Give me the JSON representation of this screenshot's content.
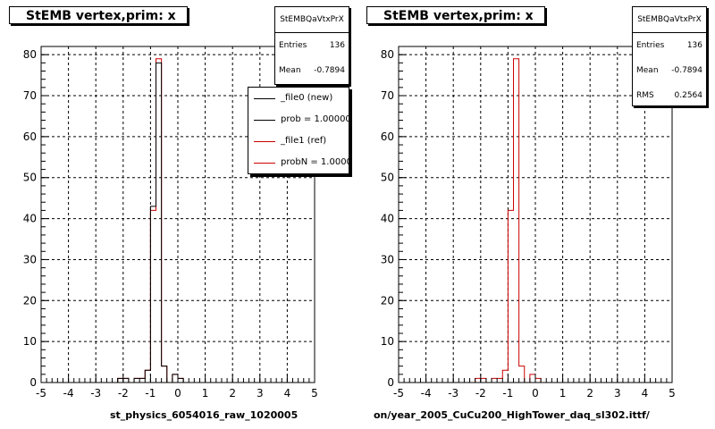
{
  "chart_data": [
    {
      "type": "bar",
      "title": "StEMB  vertex,prim: x",
      "stats": {
        "name": "StEMBQaVtxPrX",
        "entries_label": "Entries",
        "entries": "136",
        "mean_label": "Mean",
        "mean": "-0.7894"
      },
      "legend": [
        {
          "label": "_file0 (new)",
          "color": "#000000"
        },
        {
          "label": "prob = 1.000000",
          "color": "#000000"
        },
        {
          "label": "_file1 (ref)",
          "color": "#cc0000"
        },
        {
          "label": "probN = 1.000000",
          "color": "#cc0000"
        }
      ],
      "xlabel": "st_physics_6054016_raw_1020005",
      "xlim": [
        -5,
        5
      ],
      "ylim": [
        0,
        82
      ],
      "xticks": [
        -5,
        -4,
        -3,
        -2,
        -1,
        0,
        1,
        2,
        3,
        4,
        5
      ],
      "yticks": [
        0,
        10,
        20,
        30,
        40,
        50,
        60,
        70,
        80
      ],
      "bin_width": 0.2,
      "bin_start": -5,
      "series": [
        {
          "color": "#cc0000",
          "values": [
            0,
            0,
            0,
            0,
            0,
            0,
            0,
            0,
            0,
            0,
            0,
            0,
            0,
            0,
            1,
            1,
            0,
            1,
            1,
            3,
            42,
            79,
            4,
            0,
            2,
            1,
            0,
            0,
            0,
            0,
            0,
            0,
            0,
            0,
            0,
            0,
            0,
            0,
            0,
            0,
            0,
            0,
            0,
            0,
            0,
            0,
            0,
            0,
            0,
            0
          ]
        },
        {
          "color": "#000000",
          "values": [
            0,
            0,
            0,
            0,
            0,
            0,
            0,
            0,
            0,
            0,
            0,
            0,
            0,
            0,
            1,
            1,
            0,
            1,
            1,
            3,
            43,
            78,
            4,
            0,
            2,
            1,
            0,
            0,
            0,
            0,
            0,
            0,
            0,
            0,
            0,
            0,
            0,
            0,
            0,
            0,
            0,
            0,
            0,
            0,
            0,
            0,
            0,
            0,
            0,
            0
          ]
        }
      ]
    },
    {
      "type": "bar",
      "title": "StEMB  vertex,prim: x",
      "stats": {
        "name": "StEMBQaVtxPrX",
        "entries_label": "Entries",
        "entries": "136",
        "mean_label": "Mean",
        "mean": "-0.7894",
        "rms_label": "RMS",
        "rms": "0.2564"
      },
      "xlabel": "on/year_2005_CuCu200_HighTower_daq_sl302.ittf/",
      "xlim": [
        -5,
        5
      ],
      "ylim": [
        0,
        82
      ],
      "xticks": [
        -5,
        -4,
        -3,
        -2,
        -1,
        0,
        1,
        2,
        3,
        4,
        5
      ],
      "yticks": [
        0,
        10,
        20,
        30,
        40,
        50,
        60,
        70,
        80
      ],
      "bin_width": 0.2,
      "bin_start": -5,
      "series": [
        {
          "color": "#cc0000",
          "values": [
            0,
            0,
            0,
            0,
            0,
            0,
            0,
            0,
            0,
            0,
            0,
            0,
            0,
            0,
            1,
            1,
            0,
            1,
            1,
            3,
            42,
            79,
            4,
            0,
            2,
            1,
            0,
            0,
            0,
            0,
            0,
            0,
            0,
            0,
            0,
            0,
            0,
            0,
            0,
            0,
            0,
            0,
            0,
            0,
            0,
            0,
            0,
            0,
            0,
            0
          ]
        }
      ]
    }
  ]
}
